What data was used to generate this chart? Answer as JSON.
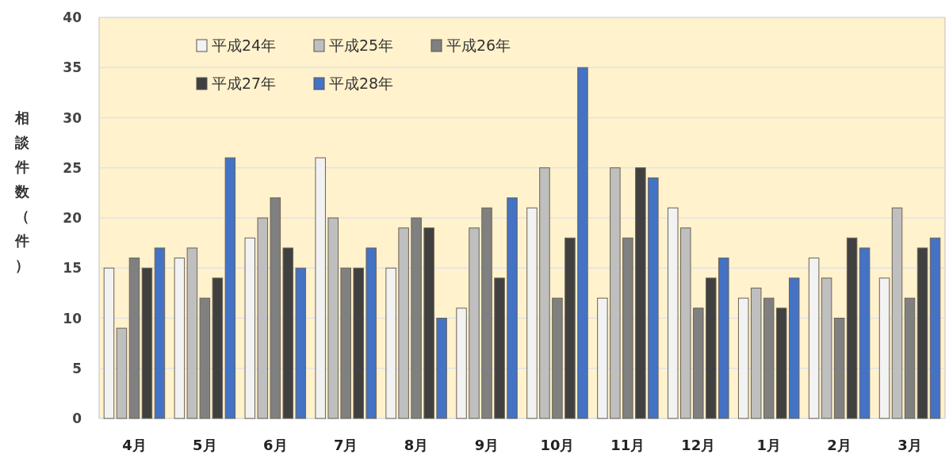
{
  "chart_data": {
    "type": "bar",
    "ylabel": "相談件数（件）",
    "categories": [
      "4月",
      "5月",
      "6月",
      "7月",
      "8月",
      "9月",
      "10月",
      "11月",
      "12月",
      "1月",
      "2月",
      "3月"
    ],
    "series": [
      {
        "name": "平成24年",
        "color": "#f2f2f2",
        "values": [
          15,
          16,
          18,
          26,
          15,
          11,
          21,
          12,
          21,
          12,
          16,
          14
        ]
      },
      {
        "name": "平成25年",
        "color": "#bfbfbf",
        "values": [
          9,
          17,
          20,
          20,
          19,
          19,
          25,
          25,
          19,
          13,
          14,
          21
        ]
      },
      {
        "name": "平成26年",
        "color": "#808080",
        "values": [
          16,
          12,
          22,
          15,
          20,
          21,
          12,
          18,
          11,
          12,
          10,
          12
        ]
      },
      {
        "name": "平成27年",
        "color": "#404040",
        "values": [
          15,
          14,
          17,
          15,
          19,
          14,
          18,
          25,
          14,
          11,
          18,
          17
        ]
      },
      {
        "name": "平成28年",
        "color": "#4472c4",
        "values": [
          17,
          26,
          15,
          17,
          10,
          22,
          35,
          24,
          16,
          14,
          17,
          18
        ]
      }
    ],
    "ylim": [
      0,
      40
    ],
    "yticks": [
      0,
      5,
      10,
      15,
      20,
      25,
      30,
      35,
      40
    ],
    "grid": "y",
    "legend": "top left"
  }
}
